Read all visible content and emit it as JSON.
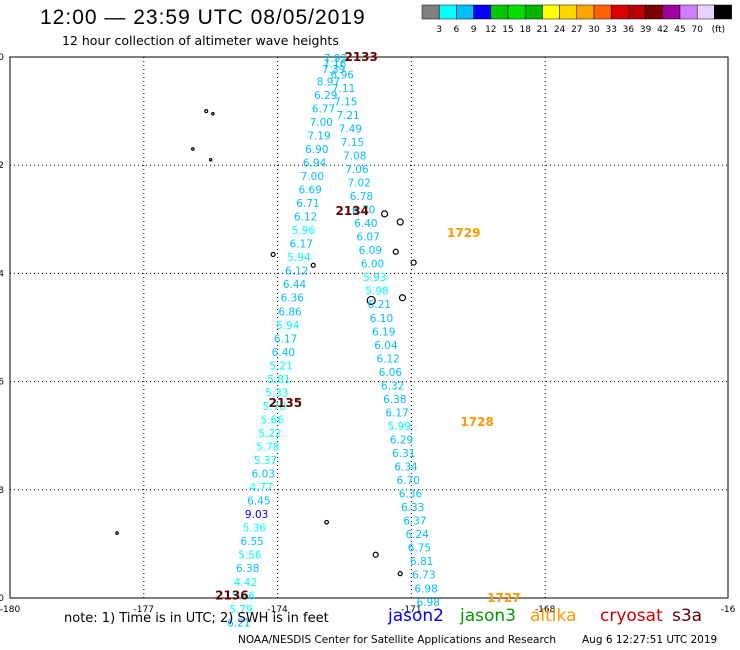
{
  "header": {
    "title": "12:00 — 23:59 UTC 08/05/2019",
    "subtitle": "12 hour collection of altimeter wave heights"
  },
  "scale": {
    "colors": [
      "#808080",
      "#00ffff",
      "#00bfff",
      "#0000ff",
      "#00c800",
      "#00e000",
      "#00b400",
      "#ffff00",
      "#ffd700",
      "#ffa500",
      "#ff6000",
      "#dc0000",
      "#b40000",
      "#780000",
      "#a000a0",
      "#d080ff",
      "#e8d0ff",
      "#000000"
    ],
    "labels": [
      "3",
      "6",
      "9",
      "12",
      "15",
      "18",
      "21",
      "24",
      "27",
      "30",
      "33",
      "36",
      "39",
      "42",
      "45",
      "70"
    ],
    "unit": "(ft)"
  },
  "footer": {
    "note": "note: 1) Time is in UTC; 2) SWH is in feet",
    "credit": "NOAA/NESDIS Center for Satellite Applications and Research",
    "timestamp": "Aug  6 12:27:51 UTC 2019"
  },
  "satellites": [
    {
      "name": "jason2",
      "color": "#0000ff"
    },
    {
      "name": "jason3",
      "color": "#009900"
    },
    {
      "name": "altika",
      "color": "#ff9900"
    },
    {
      "name": "cryosat",
      "color": "#cc0000"
    },
    {
      "name": "s3a",
      "color": "#660000"
    }
  ],
  "map": {
    "x_ticks": [
      "-180",
      "-177",
      "-174",
      "-171",
      "-168",
      "-16"
    ],
    "y_ticks": [
      "0",
      "-2",
      "-4",
      "-6",
      "-8",
      "-10"
    ],
    "pass_labels": [
      {
        "text": "2133",
        "satellite": "s3a",
        "lon": -172.5,
        "lat": 0.0
      },
      {
        "text": "2134",
        "satellite": "s3a",
        "lon": -172.7,
        "lat": -2.85
      },
      {
        "text": "1729",
        "satellite": "altika",
        "lon": -170.2,
        "lat": -3.25
      },
      {
        "text": "2135",
        "satellite": "s3a",
        "lon": -174.2,
        "lat": -6.4
      },
      {
        "text": "1728",
        "satellite": "altika",
        "lon": -169.9,
        "lat": -6.75
      },
      {
        "text": "2136",
        "satellite": "s3a",
        "lon": -175.4,
        "lat": -9.95
      },
      {
        "text": "1727",
        "satellite": "altika",
        "lon": -169.3,
        "lat": -10.0
      }
    ],
    "tracks": [
      {
        "name": "s3a-left",
        "points": [
          {
            "lon": -172.7,
            "lat": -0.02,
            "v": "7.92"
          },
          {
            "lon": -172.72,
            "lat": -0.12,
            "v": "7.16"
          },
          {
            "lon": -172.74,
            "lat": -0.22,
            "v": "7.39"
          },
          {
            "lon": -172.86,
            "lat": -0.45,
            "v": "8.97"
          },
          {
            "lon": -172.92,
            "lat": -0.7,
            "v": "6.29"
          },
          {
            "lon": -172.97,
            "lat": -0.95,
            "v": "6.77"
          },
          {
            "lon": -173.02,
            "lat": -1.2,
            "v": "7.00"
          },
          {
            "lon": -173.07,
            "lat": -1.45,
            "v": "7.19"
          },
          {
            "lon": -173.12,
            "lat": -1.7,
            "v": "6.90"
          },
          {
            "lon": -173.17,
            "lat": -1.95,
            "v": "6.94"
          },
          {
            "lon": -173.22,
            "lat": -2.2,
            "v": "7.00"
          },
          {
            "lon": -173.27,
            "lat": -2.45,
            "v": "6.69"
          },
          {
            "lon": -173.32,
            "lat": -2.7,
            "v": "6.71"
          },
          {
            "lon": -173.37,
            "lat": -2.95,
            "v": "6.12"
          },
          {
            "lon": -173.42,
            "lat": -3.2,
            "v": "5.96"
          },
          {
            "lon": -173.47,
            "lat": -3.45,
            "v": "6.17"
          },
          {
            "lon": -173.52,
            "lat": -3.7,
            "v": "5.94"
          },
          {
            "lon": -173.57,
            "lat": -3.95,
            "v": "6.12"
          },
          {
            "lon": -173.62,
            "lat": -4.2,
            "v": "6.44"
          },
          {
            "lon": -173.67,
            "lat": -4.45,
            "v": "6.36"
          },
          {
            "lon": -173.72,
            "lat": -4.7,
            "v": "6.86"
          },
          {
            "lon": -173.77,
            "lat": -4.95,
            "v": "5.94"
          },
          {
            "lon": -173.82,
            "lat": -5.2,
            "v": "6.17"
          },
          {
            "lon": -173.87,
            "lat": -5.45,
            "v": "6.40"
          },
          {
            "lon": -173.92,
            "lat": -5.7,
            "v": "5.21"
          },
          {
            "lon": -173.97,
            "lat": -5.95,
            "v": "5.81"
          },
          {
            "lon": -174.02,
            "lat": -6.2,
            "v": "5.33"
          },
          {
            "lon": -174.07,
            "lat": -6.45,
            "v": "5.78"
          },
          {
            "lon": -174.12,
            "lat": -6.7,
            "v": "5.66"
          },
          {
            "lon": -174.17,
            "lat": -6.95,
            "v": "5.22"
          },
          {
            "lon": -174.22,
            "lat": -7.2,
            "v": "5.78"
          },
          {
            "lon": -174.27,
            "lat": -7.45,
            "v": "5.37"
          },
          {
            "lon": -174.32,
            "lat": -7.7,
            "v": "6.03"
          },
          {
            "lon": -174.37,
            "lat": -7.95,
            "v": "4.77"
          },
          {
            "lon": -174.42,
            "lat": -8.2,
            "v": "6.45"
          },
          {
            "lon": -174.47,
            "lat": -8.45,
            "v": "9.03"
          },
          {
            "lon": -174.52,
            "lat": -8.7,
            "v": "5.36"
          },
          {
            "lon": -174.57,
            "lat": -8.95,
            "v": "6.55"
          },
          {
            "lon": -174.62,
            "lat": -9.2,
            "v": "5.56"
          },
          {
            "lon": -174.67,
            "lat": -9.45,
            "v": "6.38"
          },
          {
            "lon": -174.72,
            "lat": -9.7,
            "v": "4.42"
          },
          {
            "lon": -174.77,
            "lat": -9.95,
            "v": "5.16"
          },
          {
            "lon": -174.82,
            "lat": -10.2,
            "v": "5.79"
          },
          {
            "lon": -174.87,
            "lat": -10.45,
            "v": "6.21"
          }
        ]
      },
      {
        "name": "altika-right",
        "points": [
          {
            "lon": -172.55,
            "lat": -0.32,
            "v": "6.96"
          },
          {
            "lon": -172.52,
            "lat": -0.57,
            "v": "7.11"
          },
          {
            "lon": -172.47,
            "lat": -0.82,
            "v": "7.15"
          },
          {
            "lon": -172.42,
            "lat": -1.07,
            "v": "7.21"
          },
          {
            "lon": -172.37,
            "lat": -1.32,
            "v": "7.49"
          },
          {
            "lon": -172.32,
            "lat": -1.57,
            "v": "7.15"
          },
          {
            "lon": -172.27,
            "lat": -1.82,
            "v": "7.08"
          },
          {
            "lon": -172.22,
            "lat": -2.07,
            "v": "7.06"
          },
          {
            "lon": -172.17,
            "lat": -2.32,
            "v": "7.02"
          },
          {
            "lon": -172.12,
            "lat": -2.57,
            "v": "6.78"
          },
          {
            "lon": -172.07,
            "lat": -2.82,
            "v": "6.70"
          },
          {
            "lon": -172.02,
            "lat": -3.07,
            "v": "6.40"
          },
          {
            "lon": -171.97,
            "lat": -3.32,
            "v": "6.07"
          },
          {
            "lon": -171.92,
            "lat": -3.57,
            "v": "6.09"
          },
          {
            "lon": -171.87,
            "lat": -3.82,
            "v": "6.00"
          },
          {
            "lon": -171.82,
            "lat": -4.07,
            "v": "5.93"
          },
          {
            "lon": -171.77,
            "lat": -4.32,
            "v": "5.98"
          },
          {
            "lon": -171.72,
            "lat": -4.57,
            "v": "6.21"
          },
          {
            "lon": -171.67,
            "lat": -4.82,
            "v": "6.10"
          },
          {
            "lon": -171.62,
            "lat": -5.07,
            "v": "6.19"
          },
          {
            "lon": -171.57,
            "lat": -5.32,
            "v": "6.04"
          },
          {
            "lon": -171.52,
            "lat": -5.57,
            "v": "6.12"
          },
          {
            "lon": -171.47,
            "lat": -5.82,
            "v": "6.06"
          },
          {
            "lon": -171.42,
            "lat": -6.07,
            "v": "6.32"
          },
          {
            "lon": -171.37,
            "lat": -6.32,
            "v": "6.38"
          },
          {
            "lon": -171.32,
            "lat": -6.57,
            "v": "6.17"
          },
          {
            "lon": -171.27,
            "lat": -6.82,
            "v": "5.99"
          },
          {
            "lon": -171.22,
            "lat": -7.07,
            "v": "6.29"
          },
          {
            "lon": -171.17,
            "lat": -7.32,
            "v": "6.31"
          },
          {
            "lon": -171.12,
            "lat": -7.57,
            "v": "6.34"
          },
          {
            "lon": -171.07,
            "lat": -7.82,
            "v": "6.70"
          },
          {
            "lon": -171.02,
            "lat": -8.07,
            "v": "6.36"
          },
          {
            "lon": -170.97,
            "lat": -8.32,
            "v": "6.33"
          },
          {
            "lon": -170.92,
            "lat": -8.57,
            "v": "6.37"
          },
          {
            "lon": -170.87,
            "lat": -8.82,
            "v": "6.24"
          },
          {
            "lon": -170.82,
            "lat": -9.07,
            "v": "6.75"
          },
          {
            "lon": -170.77,
            "lat": -9.32,
            "v": "6.81"
          },
          {
            "lon": -170.72,
            "lat": -9.57,
            "v": "6.73"
          },
          {
            "lon": -170.67,
            "lat": -9.82,
            "v": "6.98"
          },
          {
            "lon": -170.62,
            "lat": -10.07,
            "v": "6.98"
          }
        ]
      }
    ]
  }
}
